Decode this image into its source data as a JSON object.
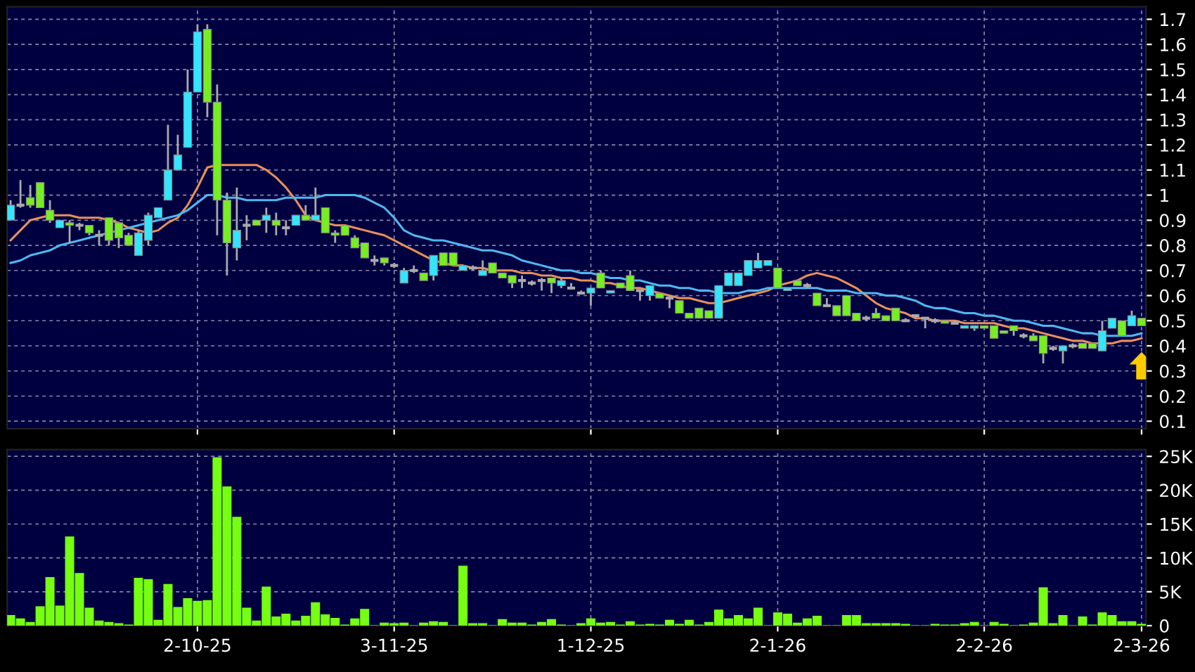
{
  "chart_data": [
    {
      "type": "candlestick",
      "categories": [
        null,
        null,
        null,
        null,
        null,
        null,
        null,
        null,
        null,
        null,
        null,
        null,
        null,
        null,
        null,
        null,
        null,
        null,
        null,
        null,
        null,
        null,
        null,
        null,
        null,
        null,
        null,
        null,
        null,
        null,
        null,
        null,
        null,
        null,
        null,
        null,
        null,
        null,
        null,
        null,
        null,
        null,
        null,
        null,
        null,
        null,
        null,
        null,
        null,
        null,
        null,
        null,
        null,
        null,
        null,
        null,
        null,
        null,
        null,
        null,
        null,
        null,
        null,
        null,
        null,
        null,
        null,
        null,
        null,
        null,
        null,
        null,
        null,
        null,
        null,
        null,
        null,
        null,
        null,
        null,
        null,
        null,
        null,
        null,
        null,
        null,
        null,
        null,
        null,
        null,
        null,
        null,
        null,
        null,
        null,
        null,
        null,
        null,
        null,
        null,
        null,
        null,
        null,
        null,
        null,
        null,
        null,
        null,
        null,
        null,
        null,
        null,
        null,
        null,
        null,
        null
      ],
      "ohlc": [
        [
          0.9,
          0.98,
          0.9,
          0.96
        ],
        [
          0.96,
          1.06,
          0.95,
          0.96
        ],
        [
          0.99,
          1.04,
          0.95,
          0.96
        ],
        [
          1.05,
          1.05,
          0.95,
          0.95
        ],
        [
          0.94,
          0.98,
          0.89,
          0.9
        ],
        [
          0.87,
          0.9,
          0.87,
          0.9
        ],
        [
          0.89,
          0.9,
          0.81,
          0.88
        ],
        [
          0.88,
          0.89,
          0.86,
          0.88
        ],
        [
          0.88,
          0.88,
          0.84,
          0.85
        ],
        [
          0.84,
          0.86,
          0.8,
          0.84
        ],
        [
          0.91,
          0.91,
          0.8,
          0.82
        ],
        [
          0.89,
          0.89,
          0.79,
          0.83
        ],
        [
          0.84,
          0.85,
          0.8,
          0.8
        ],
        [
          0.76,
          0.86,
          0.76,
          0.85
        ],
        [
          0.82,
          0.93,
          0.8,
          0.92
        ],
        [
          0.91,
          0.95,
          0.91,
          0.95
        ],
        [
          0.98,
          1.28,
          0.98,
          1.1
        ],
        [
          1.1,
          1.24,
          1.1,
          1.16
        ],
        [
          1.19,
          1.5,
          1.19,
          1.41
        ],
        [
          1.41,
          1.68,
          1.41,
          1.65
        ],
        [
          1.66,
          1.68,
          1.31,
          1.37
        ],
        [
          1.37,
          1.44,
          0.84,
          0.98
        ],
        [
          0.98,
          1.01,
          0.68,
          0.81
        ],
        [
          0.79,
          1.03,
          0.74,
          0.86
        ],
        [
          0.88,
          0.92,
          0.82,
          0.88
        ],
        [
          0.9,
          0.9,
          0.88,
          0.88
        ],
        [
          0.9,
          0.95,
          0.85,
          0.92
        ],
        [
          0.9,
          0.93,
          0.84,
          0.88
        ],
        [
          0.87,
          0.9,
          0.84,
          0.87
        ],
        [
          0.88,
          0.92,
          0.88,
          0.92
        ],
        [
          0.92,
          0.96,
          0.9,
          0.9
        ],
        [
          0.9,
          1.03,
          0.9,
          0.92
        ],
        [
          0.95,
          0.95,
          0.85,
          0.85
        ],
        [
          0.85,
          0.86,
          0.81,
          0.84
        ],
        [
          0.88,
          0.88,
          0.84,
          0.84
        ],
        [
          0.83,
          0.84,
          0.79,
          0.79
        ],
        [
          0.81,
          0.81,
          0.75,
          0.75
        ],
        [
          0.74,
          0.76,
          0.72,
          0.74
        ],
        [
          0.75,
          0.75,
          0.72,
          0.73
        ],
        [
          0.72,
          0.73,
          0.71,
          0.72
        ],
        [
          0.65,
          0.71,
          0.65,
          0.7
        ],
        [
          0.7,
          0.72,
          0.69,
          0.7
        ],
        [
          0.69,
          0.69,
          0.66,
          0.66
        ],
        [
          0.68,
          0.76,
          0.66,
          0.76
        ],
        [
          0.77,
          0.77,
          0.72,
          0.72
        ],
        [
          0.77,
          0.77,
          0.72,
          0.72
        ],
        [
          0.7,
          0.72,
          0.7,
          0.72
        ],
        [
          0.71,
          0.72,
          0.7,
          0.71
        ],
        [
          0.68,
          0.74,
          0.68,
          0.7
        ],
        [
          0.73,
          0.73,
          0.69,
          0.69
        ],
        [
          0.69,
          0.69,
          0.67,
          0.67
        ],
        [
          0.68,
          0.68,
          0.63,
          0.65
        ],
        [
          0.66,
          0.68,
          0.63,
          0.66
        ],
        [
          0.65,
          0.66,
          0.64,
          0.65
        ],
        [
          0.66,
          0.67,
          0.62,
          0.66
        ],
        [
          0.67,
          0.67,
          0.61,
          0.65
        ],
        [
          0.64,
          0.67,
          0.63,
          0.66
        ],
        [
          0.63,
          0.65,
          0.63,
          0.63
        ],
        [
          0.61,
          0.62,
          0.61,
          0.61
        ],
        [
          0.61,
          0.63,
          0.56,
          0.63
        ],
        [
          0.69,
          0.7,
          0.63,
          0.63
        ],
        [
          0.61,
          0.62,
          0.61,
          0.62
        ],
        [
          0.65,
          0.65,
          0.63,
          0.63
        ],
        [
          0.68,
          0.7,
          0.62,
          0.62
        ],
        [
          0.62,
          0.62,
          0.58,
          0.62
        ],
        [
          0.6,
          0.64,
          0.58,
          0.64
        ],
        [
          0.61,
          0.61,
          0.59,
          0.59
        ],
        [
          0.59,
          0.6,
          0.55,
          0.59
        ],
        [
          0.58,
          0.58,
          0.53,
          0.53
        ],
        [
          0.53,
          0.53,
          0.51,
          0.51
        ],
        [
          0.55,
          0.55,
          0.51,
          0.51
        ],
        [
          0.54,
          0.54,
          0.51,
          0.51
        ],
        [
          0.51,
          0.64,
          0.51,
          0.64
        ],
        [
          0.64,
          0.69,
          0.64,
          0.69
        ],
        [
          0.64,
          0.69,
          0.64,
          0.69
        ],
        [
          0.68,
          0.74,
          0.68,
          0.74
        ],
        [
          0.71,
          0.77,
          0.71,
          0.74
        ],
        [
          0.72,
          0.74,
          0.72,
          0.74
        ],
        [
          0.71,
          0.71,
          0.63,
          0.63
        ],
        [
          0.62,
          0.63,
          0.62,
          0.63
        ],
        [
          0.66,
          0.66,
          0.64,
          0.64
        ],
        [
          0.64,
          0.65,
          0.63,
          0.64
        ],
        [
          0.61,
          0.61,
          0.56,
          0.56
        ],
        [
          0.56,
          0.59,
          0.56,
          0.56
        ],
        [
          0.56,
          0.56,
          0.52,
          0.52
        ],
        [
          0.6,
          0.6,
          0.52,
          0.52
        ],
        [
          0.53,
          0.53,
          0.5,
          0.5
        ],
        [
          0.51,
          0.52,
          0.5,
          0.51
        ],
        [
          0.53,
          0.55,
          0.51,
          0.51
        ],
        [
          0.52,
          0.52,
          0.5,
          0.5
        ],
        [
          0.55,
          0.55,
          0.5,
          0.5
        ],
        [
          0.5,
          0.51,
          0.5,
          0.5
        ],
        [
          0.52,
          0.52,
          0.51,
          0.52
        ],
        [
          0.51,
          0.51,
          0.47,
          0.51
        ],
        [
          0.5,
          0.51,
          0.49,
          0.5
        ],
        [
          0.5,
          0.5,
          0.49,
          0.49
        ],
        [
          0.49,
          0.5,
          0.49,
          0.49
        ],
        [
          0.47,
          0.48,
          0.47,
          0.48
        ],
        [
          0.47,
          0.48,
          0.46,
          0.48
        ],
        [
          0.48,
          0.48,
          0.47,
          0.47
        ],
        [
          0.48,
          0.48,
          0.43,
          0.43
        ],
        [
          0.46,
          0.46,
          0.45,
          0.45
        ],
        [
          0.48,
          0.48,
          0.44,
          0.46
        ],
        [
          0.44,
          0.45,
          0.43,
          0.44
        ],
        [
          0.44,
          0.45,
          0.42,
          0.42
        ],
        [
          0.44,
          0.44,
          0.33,
          0.37
        ],
        [
          0.39,
          0.4,
          0.38,
          0.39
        ],
        [
          0.38,
          0.4,
          0.33,
          0.4
        ],
        [
          0.4,
          0.41,
          0.39,
          0.4
        ],
        [
          0.41,
          0.41,
          0.39,
          0.39
        ],
        [
          0.41,
          0.41,
          0.39,
          0.39
        ],
        [
          0.38,
          0.5,
          0.38,
          0.46
        ],
        [
          0.47,
          0.51,
          0.47,
          0.51
        ],
        [
          0.5,
          0.5,
          0.44,
          0.44
        ],
        [
          0.48,
          0.54,
          0.48,
          0.52
        ],
        [
          0.51,
          0.51,
          0.48,
          0.48
        ]
      ],
      "colors": [
        "#33e5ff",
        "#aaaaaa",
        "#77ee22",
        "#77ee22",
        "#77ee22",
        "#33e5ff",
        "#77ee22",
        "#aaaaaa",
        "#77ee22",
        "#aaaaaa",
        "#77ee22",
        "#77ee22",
        "#77ee22",
        "#33e5ff",
        "#33e5ff",
        "#33e5ff",
        "#33e5ff",
        "#33e5ff",
        "#33e5ff",
        "#33e5ff",
        "#77ee22",
        "#77ee22",
        "#77ee22",
        "#33e5ff",
        "#aaaaaa",
        "#77ee22",
        "#33e5ff",
        "#77ee22",
        "#aaaaaa",
        "#33e5ff",
        "#77ee22",
        "#33e5ff",
        "#77ee22",
        "#77ee22",
        "#77ee22",
        "#77ee22",
        "#77ee22",
        "#aaaaaa",
        "#77ee22",
        "#aaaaaa",
        "#33e5ff",
        "#aaaaaa",
        "#77ee22",
        "#33e5ff",
        "#77ee22",
        "#77ee22",
        "#33e5ff",
        "#aaaaaa",
        "#33e5ff",
        "#77ee22",
        "#77ee22",
        "#77ee22",
        "#aaaaaa",
        "#aaaaaa",
        "#aaaaaa",
        "#77ee22",
        "#33e5ff",
        "#aaaaaa",
        "#aaaaaa",
        "#33e5ff",
        "#77ee22",
        "#33e5ff",
        "#77ee22",
        "#77ee22",
        "#aaaaaa",
        "#33e5ff",
        "#77ee22",
        "#aaaaaa",
        "#77ee22",
        "#77ee22",
        "#77ee22",
        "#77ee22",
        "#33e5ff",
        "#33e5ff",
        "#33e5ff",
        "#33e5ff",
        "#33e5ff",
        "#33e5ff",
        "#77ee22",
        "#33e5ff",
        "#77ee22",
        "#aaaaaa",
        "#77ee22",
        "#aaaaaa",
        "#77ee22",
        "#77ee22",
        "#77ee22",
        "#aaaaaa",
        "#77ee22",
        "#77ee22",
        "#77ee22",
        "#aaaaaa",
        "#aaaaaa",
        "#aaaaaa",
        "#aaaaaa",
        "#77ee22",
        "#aaaaaa",
        "#33e5ff",
        "#33e5ff",
        "#77ee22",
        "#77ee22",
        "#77ee22",
        "#77ee22",
        "#aaaaaa",
        "#77ee22",
        "#77ee22",
        "#aaaaaa",
        "#33e5ff",
        "#aaaaaa",
        "#77ee22",
        "#77ee22",
        "#33e5ff",
        "#33e5ff",
        "#77ee22",
        "#33e5ff",
        "#77ee22"
      ],
      "series": [
        {
          "type": "line",
          "color": "#e8905a",
          "values": [
            0.82,
            0.86,
            0.9,
            0.91,
            0.92,
            0.92,
            0.92,
            0.91,
            0.91,
            0.91,
            0.9,
            0.89,
            0.87,
            0.86,
            0.85,
            0.86,
            0.89,
            0.91,
            0.96,
            1.03,
            1.11,
            1.12,
            1.12,
            1.12,
            1.12,
            1.12,
            1.1,
            1.07,
            1.03,
            0.98,
            0.92,
            0.9,
            0.89,
            0.88,
            0.88,
            0.87,
            0.86,
            0.85,
            0.84,
            0.82,
            0.8,
            0.78,
            0.76,
            0.74,
            0.73,
            0.72,
            0.72,
            0.71,
            0.71,
            0.7,
            0.7,
            0.7,
            0.69,
            0.69,
            0.68,
            0.68,
            0.67,
            0.67,
            0.66,
            0.66,
            0.65,
            0.65,
            0.64,
            0.63,
            0.63,
            0.62,
            0.61,
            0.6,
            0.59,
            0.59,
            0.58,
            0.57,
            0.57,
            0.58,
            0.59,
            0.6,
            0.61,
            0.62,
            0.64,
            0.65,
            0.66,
            0.68,
            0.69,
            0.68,
            0.67,
            0.65,
            0.63,
            0.6,
            0.57,
            0.55,
            0.54,
            0.53,
            0.51,
            0.51,
            0.5,
            0.5,
            0.5,
            0.49,
            0.49,
            0.49,
            0.49,
            0.48,
            0.47,
            0.47,
            0.46,
            0.45,
            0.44,
            0.43,
            0.42,
            0.42,
            0.41,
            0.41,
            0.41,
            0.42,
            0.42,
            0.43
          ]
        },
        {
          "type": "line",
          "color": "#4fb8f0",
          "values": [
            0.73,
            0.74,
            0.76,
            0.77,
            0.78,
            0.8,
            0.81,
            0.82,
            0.83,
            0.84,
            0.85,
            0.86,
            0.87,
            0.88,
            0.89,
            0.9,
            0.91,
            0.92,
            0.94,
            0.97,
            1.0,
            1.0,
            0.99,
            0.99,
            0.98,
            0.98,
            0.98,
            0.98,
            0.99,
            0.99,
            0.99,
            0.99,
            1.0,
            1.0,
            1.0,
            1.0,
            0.99,
            0.97,
            0.95,
            0.91,
            0.86,
            0.84,
            0.83,
            0.82,
            0.82,
            0.81,
            0.8,
            0.79,
            0.78,
            0.78,
            0.77,
            0.76,
            0.74,
            0.73,
            0.72,
            0.71,
            0.7,
            0.7,
            0.69,
            0.69,
            0.68,
            0.67,
            0.67,
            0.66,
            0.66,
            0.65,
            0.64,
            0.64,
            0.63,
            0.63,
            0.62,
            0.62,
            0.61,
            0.61,
            0.61,
            0.62,
            0.62,
            0.63,
            0.63,
            0.63,
            0.63,
            0.63,
            0.63,
            0.62,
            0.62,
            0.62,
            0.61,
            0.61,
            0.61,
            0.6,
            0.6,
            0.59,
            0.58,
            0.56,
            0.55,
            0.55,
            0.54,
            0.53,
            0.53,
            0.52,
            0.52,
            0.51,
            0.5,
            0.5,
            0.49,
            0.48,
            0.48,
            0.47,
            0.46,
            0.45,
            0.45,
            0.44,
            0.44,
            0.44,
            0.44,
            0.45
          ]
        }
      ],
      "ylim": [
        0.07,
        1.75
      ],
      "yticks": [
        0.1,
        0.2,
        0.3,
        0.4,
        0.5,
        0.6,
        0.7,
        0.8,
        0.9,
        1,
        1.1,
        1.2,
        1.3,
        1.4,
        1.5,
        1.6,
        1.7
      ],
      "grid": true,
      "tick_labels": "y"
    },
    {
      "type": "bar",
      "categories": [
        null,
        null,
        null,
        null,
        null,
        null,
        null,
        null,
        null,
        null,
        null,
        null,
        null,
        null,
        null,
        null,
        null,
        null,
        null,
        "2-10-25",
        null,
        null,
        null,
        null,
        null,
        null,
        null,
        null,
        null,
        null,
        null,
        null,
        null,
        null,
        null,
        null,
        null,
        null,
        null,
        "3-11-25",
        null,
        null,
        null,
        null,
        null,
        null,
        null,
        null,
        null,
        null,
        null,
        null,
        null,
        null,
        null,
        null,
        null,
        null,
        null,
        "1-12-25",
        null,
        null,
        null,
        null,
        null,
        null,
        null,
        null,
        null,
        null,
        null,
        null,
        null,
        null,
        null,
        null,
        null,
        null,
        "2-1-26",
        null,
        null,
        null,
        null,
        null,
        null,
        null,
        null,
        null,
        null,
        null,
        null,
        null,
        null,
        null,
        null,
        null,
        null,
        null,
        null,
        "2-2-26",
        null,
        null,
        null,
        null,
        null,
        null,
        null,
        null,
        null,
        null,
        null,
        null,
        null,
        null,
        null,
        "2-3-26"
      ],
      "values": [
        1500,
        1000,
        500,
        2800,
        7100,
        2900,
        13100,
        7700,
        2600,
        700,
        500,
        300,
        100,
        7000,
        6800,
        800,
        6100,
        2700,
        4000,
        3600,
        3700,
        24800,
        20500,
        16000,
        2600,
        700,
        5700,
        1300,
        1700,
        700,
        1400,
        3400,
        1600,
        1100,
        100,
        1000,
        2400,
        0,
        400,
        300,
        400,
        0,
        400,
        600,
        500,
        0,
        8800,
        300,
        300,
        0,
        900,
        400,
        400,
        100,
        500,
        900,
        100,
        0,
        300,
        1000,
        400,
        500,
        100,
        600,
        100,
        200,
        100,
        800,
        200,
        800,
        100,
        500,
        2300,
        1000,
        1500,
        1000,
        2600,
        0,
        1900,
        1700,
        400,
        1000,
        1400,
        0,
        0,
        1500,
        1500,
        300,
        300,
        300,
        300,
        200,
        0,
        0,
        200,
        100,
        100,
        300,
        500,
        0,
        500,
        200,
        0,
        100,
        400,
        5600,
        300,
        1500,
        0,
        1300,
        100,
        1900,
        1500,
        600,
        600,
        200
      ],
      "color": "#77ff11",
      "ylim": [
        0,
        26000
      ],
      "yticks": [
        0,
        {
          "value": 5000,
          "label": "5K"
        },
        {
          "value": 10000,
          "label": "10K"
        },
        {
          "value": 15000,
          "label": "15K"
        },
        {
          "value": 20000,
          "label": "20K"
        },
        {
          "value": 25000,
          "label": "25K"
        }
      ],
      "grid": true
    }
  ]
}
